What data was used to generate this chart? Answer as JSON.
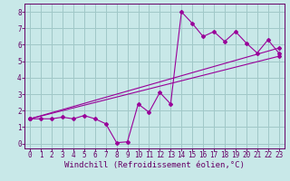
{
  "background_color": "#c8e8e8",
  "grid_color": "#a0c8c8",
  "line_color": "#990099",
  "marker_color": "#990099",
  "xlabel": "Windchill (Refroidissement éolien,°C)",
  "xlim": [
    -0.5,
    23.5
  ],
  "ylim": [
    -0.3,
    8.5
  ],
  "xticks": [
    0,
    1,
    2,
    3,
    4,
    5,
    6,
    7,
    8,
    9,
    10,
    11,
    12,
    13,
    14,
    15,
    16,
    17,
    18,
    19,
    20,
    21,
    22,
    23
  ],
  "yticks": [
    0,
    1,
    2,
    3,
    4,
    5,
    6,
    7,
    8
  ],
  "line1_x": [
    0,
    1,
    2,
    3,
    4,
    5,
    6,
    7,
    8,
    9,
    10,
    11,
    12,
    13,
    14,
    15,
    16,
    17,
    18,
    19,
    20,
    21,
    22,
    23
  ],
  "line1_y": [
    1.5,
    1.5,
    1.5,
    1.6,
    1.5,
    1.7,
    1.5,
    1.2,
    0.05,
    0.1,
    2.4,
    1.9,
    3.1,
    2.4,
    8.0,
    7.3,
    6.5,
    6.8,
    6.2,
    6.8,
    6.1,
    5.5,
    6.3,
    5.5
  ],
  "line2_x": [
    0,
    23
  ],
  "line2_y": [
    1.5,
    5.3
  ],
  "line3_x": [
    0,
    23
  ],
  "line3_y": [
    1.5,
    5.8
  ],
  "tick_fontsize": 5.5,
  "xlabel_fontsize": 6.5,
  "spine_color": "#660066"
}
